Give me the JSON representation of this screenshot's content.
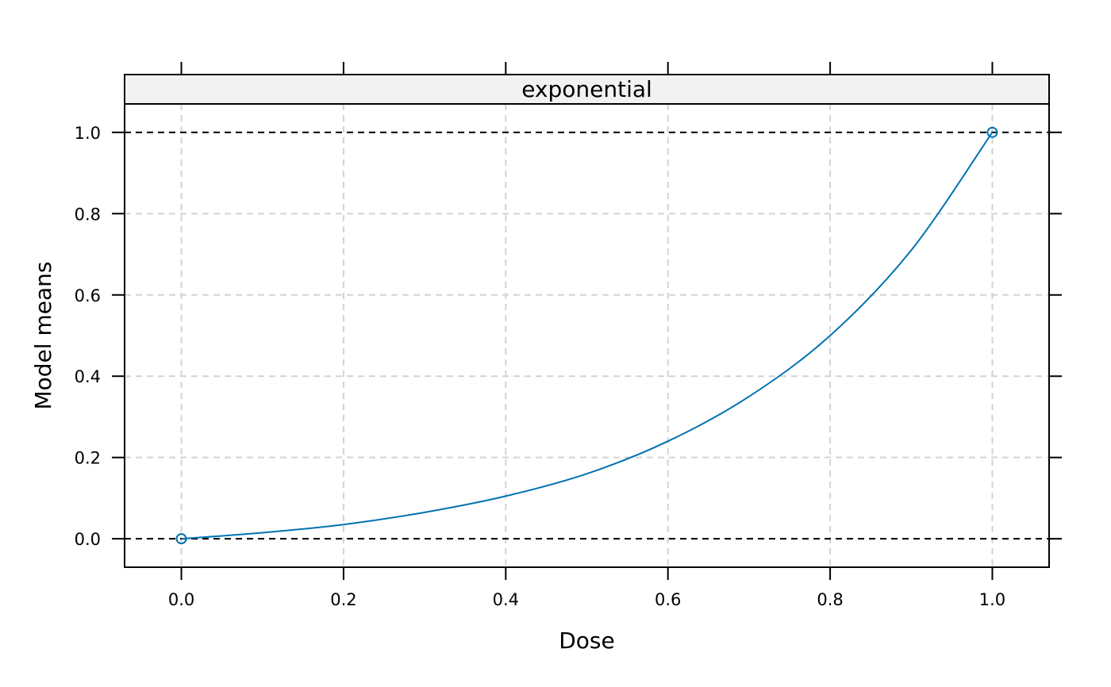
{
  "chart_data": {
    "type": "line",
    "panel_title": "exponential",
    "xlabel": "Dose",
    "ylabel": "Model means",
    "xlim": [
      -0.07,
      1.07
    ],
    "ylim": [
      -0.07,
      1.07
    ],
    "x_ticks": [
      0.0,
      0.2,
      0.4,
      0.6,
      0.8,
      1.0
    ],
    "x_tick_labels": [
      "0.0",
      "0.2",
      "0.4",
      "0.6",
      "0.8",
      "1.0"
    ],
    "y_ticks": [
      0.0,
      0.2,
      0.4,
      0.6,
      0.8,
      1.0
    ],
    "y_tick_labels": [
      "0.0",
      "0.2",
      "0.4",
      "0.6",
      "0.8",
      "1.0"
    ],
    "grid": true,
    "reference_lines_y": [
      0.0,
      1.0
    ],
    "series": [
      {
        "x": [
          0.0,
          0.1,
          0.2,
          0.3,
          0.4,
          0.5,
          0.6,
          0.7,
          0.8,
          0.9,
          1.0
        ],
        "y": [
          0.0,
          0.015,
          0.035,
          0.065,
          0.105,
          0.16,
          0.24,
          0.35,
          0.5,
          0.71,
          1.0
        ]
      }
    ],
    "points": [
      {
        "x": 0.0,
        "y": 0.0
      },
      {
        "x": 1.0,
        "y": 1.0
      }
    ],
    "colors": {
      "line": "#0072B2",
      "strip_bg": "#F2F2F2",
      "grid": "#D3D3D3",
      "reference": "#000000"
    }
  }
}
